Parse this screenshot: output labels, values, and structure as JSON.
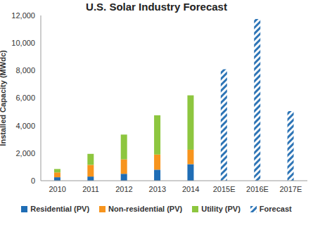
{
  "chart_data": {
    "type": "bar",
    "title": "U.S. Solar Industry Forecast",
    "y_label": "Installed Capacity (MWdc)",
    "categories": [
      "2010",
      "2011",
      "2012",
      "2013",
      "2014",
      "2015E",
      "2016E",
      "2017E"
    ],
    "series": [
      {
        "name": "Residential (PV)",
        "color": "#1f6db5",
        "values": [
          250,
          300,
          500,
          800,
          1200,
          null,
          null,
          null
        ]
      },
      {
        "name": "Non-residential (PV)",
        "color": "#f7941d",
        "values": [
          350,
          850,
          1050,
          1100,
          1050,
          null,
          null,
          null
        ]
      },
      {
        "name": "Utility (PV)",
        "color": "#8dc63f",
        "values": [
          250,
          800,
          1800,
          2850,
          3950,
          null,
          null,
          null
        ]
      },
      {
        "name": "Forecast",
        "color": "#2e75b6",
        "line_style": "hatched",
        "values": [
          null,
          null,
          null,
          null,
          null,
          8100,
          11750,
          5050
        ]
      }
    ],
    "ylim": [
      0,
      12000
    ],
    "yticks": [
      0,
      {
        "value": 2000,
        "label": "2,000"
      },
      {
        "value": 4000,
        "label": "4,000"
      },
      {
        "value": 6000,
        "label": "6,000"
      },
      {
        "value": 8000,
        "label": "8,000"
      },
      {
        "value": 10000,
        "label": "10,000"
      },
      {
        "value": 12000,
        "label": "12,000"
      }
    ],
    "stacked": true,
    "grid": false,
    "legend": "bottom"
  }
}
